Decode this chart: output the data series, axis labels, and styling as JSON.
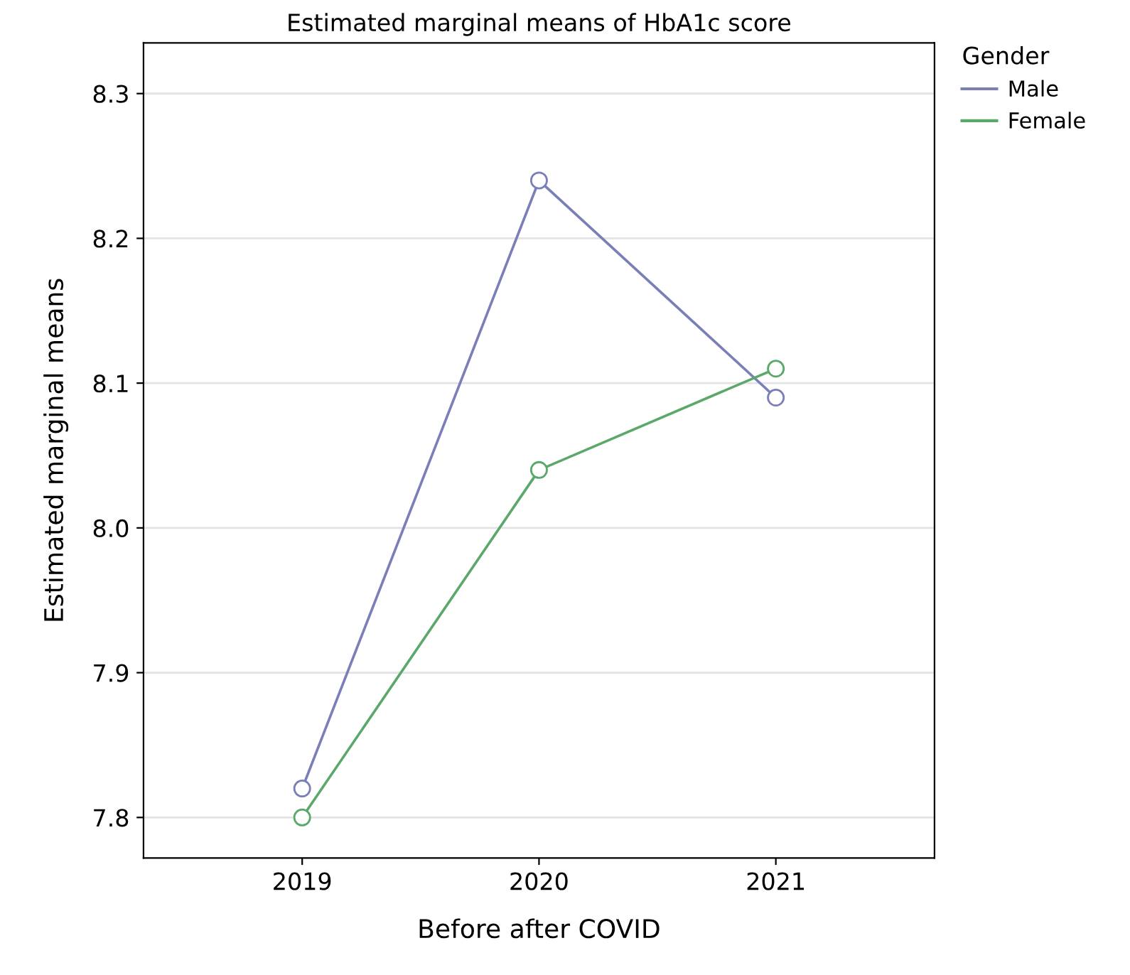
{
  "chart_data": {
    "type": "line",
    "title": "Estimated marginal means of HbA1c score",
    "xlabel": "Before after COVID",
    "ylabel": "Estimated marginal means",
    "legend_title": "Gender",
    "categories": [
      "2019",
      "2020",
      "2021"
    ],
    "series": [
      {
        "name": "Male",
        "color": "#7b7fb8",
        "values": [
          7.82,
          8.24,
          8.09
        ]
      },
      {
        "name": "Female",
        "color": "#5aa86a",
        "values": [
          7.8,
          8.04,
          8.11
        ]
      }
    ],
    "ylim": [
      7.772,
      8.335
    ],
    "yticks": [
      {
        "value": 7.8,
        "label": "7.8"
      },
      {
        "value": 7.9,
        "label": "7.9"
      },
      {
        "value": 8.0,
        "label": "8.0"
      },
      {
        "value": 8.1,
        "label": "8.1"
      },
      {
        "value": 8.2,
        "label": "8.2"
      },
      {
        "value": 8.3,
        "label": "8.3"
      }
    ],
    "grid": "y",
    "legend": "top right",
    "marker": "circle",
    "line_style": "solid"
  }
}
